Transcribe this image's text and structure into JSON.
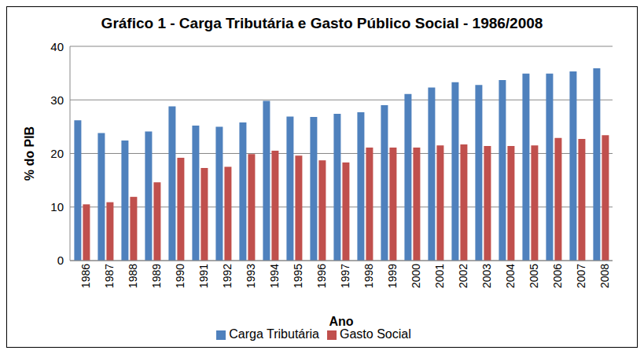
{
  "chart_data": {
    "type": "bar",
    "title": "Gráfico 1 - Carga Tributária e Gasto Público Social - 1986/2008",
    "x_label": "Ano",
    "y_label": "% do PIB",
    "categories": [
      "1986",
      "1987",
      "1988",
      "1989",
      "1990",
      "1991",
      "1992",
      "1993",
      "1994",
      "1995",
      "1996",
      "1997",
      "1998",
      "1999",
      "2000",
      "2001",
      "2002",
      "2003",
      "2004",
      "2005",
      "2006",
      "2007",
      "2008"
    ],
    "series": [
      {
        "name": "Carga Tributária",
        "color": "#4f81bd",
        "values": [
          26.2,
          23.8,
          22.4,
          24.1,
          28.8,
          25.2,
          25.0,
          25.8,
          29.8,
          26.9,
          26.8,
          27.4,
          27.7,
          29.0,
          31.1,
          32.3,
          33.3,
          32.8,
          33.7,
          34.9,
          34.9,
          35.3,
          35.9
        ]
      },
      {
        "name": "Gasto Social",
        "color": "#c0504d",
        "values": [
          10.5,
          10.9,
          11.9,
          14.6,
          19.2,
          17.3,
          17.5,
          19.9,
          20.5,
          19.6,
          18.7,
          18.3,
          21.1,
          21.1,
          21.1,
          21.5,
          21.7,
          21.4,
          21.4,
          21.5,
          22.9,
          22.7,
          23.4
        ]
      }
    ],
    "ylim": [
      0,
      40
    ],
    "yticks": [
      0,
      10,
      20,
      30,
      40
    ],
    "grid": true,
    "legend": "bottom"
  }
}
